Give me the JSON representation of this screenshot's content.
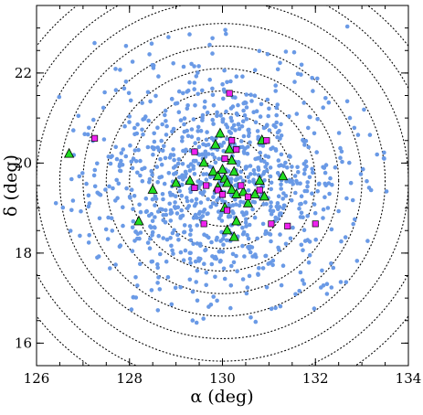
{
  "chart_data": {
    "type": "scatter",
    "xlabel": "α (deg)",
    "ylabel": "δ (deg)",
    "xlim": [
      126,
      134
    ],
    "ylim": [
      15.5,
      23.5
    ],
    "grid": false,
    "x_ticks": [
      {
        "v": 126,
        "label": "126"
      },
      {
        "v": 128,
        "label": "128"
      },
      {
        "v": 130,
        "label": "130"
      },
      {
        "v": 132,
        "label": "132"
      },
      {
        "v": 134,
        "label": "134"
      }
    ],
    "y_ticks": [
      {
        "v": 16,
        "label": "16"
      },
      {
        "v": 18,
        "label": "18"
      },
      {
        "v": 20,
        "label": "20"
      },
      {
        "v": 22,
        "label": "22"
      }
    ],
    "circles": {
      "center": [
        130.0,
        19.6
      ],
      "radii_deg": [
        0.5,
        1.0,
        1.5,
        2.0,
        2.5,
        3.0,
        3.5,
        4.0,
        4.5,
        5.0
      ],
      "style": "dotted",
      "color": "#000000"
    },
    "background_stars": {
      "count": 1000,
      "center": [
        130.0,
        19.6
      ],
      "color": "#6a9ae6",
      "marker": "circle",
      "seed": 7
    },
    "series": [
      {
        "marker": "triangle",
        "color": "#22dd22",
        "edge": "#000000",
        "points": [
          [
            126.7,
            20.2
          ],
          [
            128.5,
            19.4
          ],
          [
            128.2,
            18.7
          ],
          [
            129.0,
            19.55
          ],
          [
            129.3,
            19.6
          ],
          [
            129.6,
            20.0
          ],
          [
            129.8,
            19.8
          ],
          [
            129.95,
            20.65
          ],
          [
            129.9,
            19.7
          ],
          [
            130.0,
            19.85
          ],
          [
            130.05,
            19.65
          ],
          [
            130.1,
            19.55
          ],
          [
            130.2,
            19.4
          ],
          [
            130.3,
            19.3
          ],
          [
            130.15,
            20.3
          ],
          [
            130.2,
            20.05
          ],
          [
            130.25,
            19.8
          ],
          [
            129.9,
            19.45
          ],
          [
            130.05,
            19.0
          ],
          [
            130.3,
            18.7
          ],
          [
            130.1,
            18.5
          ],
          [
            130.25,
            18.35
          ],
          [
            130.55,
            19.1
          ],
          [
            130.7,
            19.3
          ],
          [
            130.9,
            19.25
          ],
          [
            130.85,
            20.5
          ],
          [
            131.3,
            19.7
          ],
          [
            129.85,
            20.4
          ],
          [
            130.45,
            19.35
          ],
          [
            130.8,
            19.6
          ]
        ]
      },
      {
        "marker": "square",
        "color": "#ee22ee",
        "edge": "#000000",
        "points": [
          [
            127.25,
            20.55
          ],
          [
            130.15,
            21.55
          ],
          [
            130.2,
            20.5
          ],
          [
            129.4,
            20.25
          ],
          [
            129.4,
            19.45
          ],
          [
            129.65,
            19.5
          ],
          [
            129.9,
            19.4
          ],
          [
            130.0,
            19.3
          ],
          [
            130.4,
            19.5
          ],
          [
            130.55,
            19.25
          ],
          [
            130.3,
            20.3
          ],
          [
            130.05,
            20.1
          ],
          [
            130.1,
            18.95
          ],
          [
            130.8,
            19.4
          ],
          [
            130.95,
            20.5
          ],
          [
            131.05,
            18.65
          ],
          [
            131.4,
            18.6
          ],
          [
            132.0,
            18.65
          ],
          [
            129.6,
            18.65
          ]
        ]
      }
    ]
  }
}
